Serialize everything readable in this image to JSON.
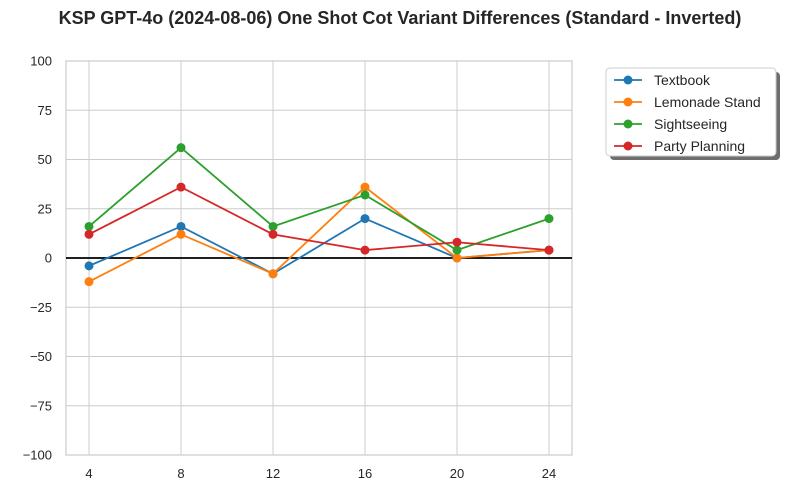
{
  "chart_data": {
    "type": "line",
    "title": "KSP GPT-4o (2024-08-06) One Shot Cot Variant Differences (Standard - Inverted)",
    "xlabel": "",
    "ylabel": "",
    "x": [
      4,
      8,
      12,
      16,
      20,
      24
    ],
    "x_tick_labels": [
      "4",
      "8",
      "12",
      "16",
      "20",
      "24"
    ],
    "y_ticks": [
      100,
      75,
      50,
      25,
      0,
      -25,
      -50,
      -75,
      -100
    ],
    "y_tick_labels": [
      "100",
      "75",
      "50",
      "25",
      "0",
      "−25",
      "−50",
      "−75",
      "−100"
    ],
    "xlim": [
      3,
      25
    ],
    "ylim": [
      -100,
      100
    ],
    "grid": true,
    "zero_line": true,
    "legend_position": "outside top-right",
    "series": [
      {
        "name": "Textbook",
        "color": "#1f77b4",
        "values": [
          -4,
          16,
          -8,
          20,
          0,
          4
        ]
      },
      {
        "name": "Lemonade Stand",
        "color": "#ff7f0e",
        "values": [
          -12,
          12,
          -8,
          36,
          0,
          4
        ]
      },
      {
        "name": "Sightseeing",
        "color": "#2ca02c",
        "values": [
          16,
          56,
          16,
          32,
          4,
          20
        ]
      },
      {
        "name": "Party Planning",
        "color": "#d62728",
        "values": [
          12,
          36,
          12,
          4,
          8,
          4
        ]
      }
    ]
  }
}
